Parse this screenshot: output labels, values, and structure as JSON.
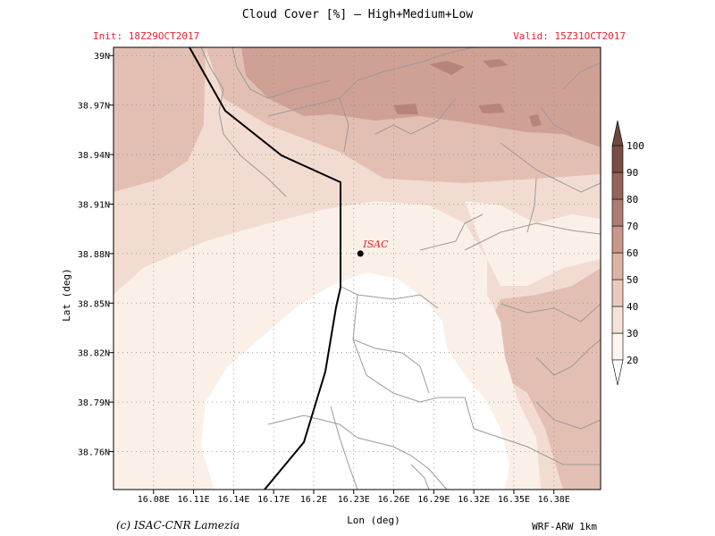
{
  "title": "Cloud Cover [%] — High+Medium+Low",
  "init_label": "Init: 18Z29OCT2017",
  "valid_label": "Valid: 15Z31OCT2017",
  "credit": "(c) ISAC-CNR Lamezia",
  "model": "WRF-ARW 1km",
  "station": {
    "name": "ISAC",
    "lon": 16.235,
    "lat": 38.88
  },
  "chart_data": {
    "type": "heatmap",
    "xlabel": "Lon (deg)",
    "ylabel": "Lat (deg)",
    "xlim": [
      16.05,
      16.415
    ],
    "ylim": [
      38.737,
      39.005
    ],
    "x_ticks": [
      {
        "label": "16.08E",
        "value": 16.08
      },
      {
        "label": "16.11E",
        "value": 16.11
      },
      {
        "label": "16.14E",
        "value": 16.14
      },
      {
        "label": "16.17E",
        "value": 16.17
      },
      {
        "label": "16.2E",
        "value": 16.2
      },
      {
        "label": "16.23E",
        "value": 16.23
      },
      {
        "label": "16.26E",
        "value": 16.26
      },
      {
        "label": "16.29E",
        "value": 16.29
      },
      {
        "label": "16.32E",
        "value": 16.32
      },
      {
        "label": "16.35E",
        "value": 16.35
      },
      {
        "label": "16.38E",
        "value": 16.38
      }
    ],
    "y_ticks": [
      {
        "label": "39N",
        "value": 39.0
      },
      {
        "label": "38.97N",
        "value": 38.97
      },
      {
        "label": "38.94N",
        "value": 38.94
      },
      {
        "label": "38.91N",
        "value": 38.91
      },
      {
        "label": "38.88N",
        "value": 38.88
      },
      {
        "label": "38.85N",
        "value": 38.85
      },
      {
        "label": "38.82N",
        "value": 38.82
      },
      {
        "label": "38.79N",
        "value": 38.79
      },
      {
        "label": "38.76N",
        "value": 38.76
      }
    ],
    "colorbar": {
      "levels": [
        "20",
        "30",
        "40",
        "50",
        "60",
        "70",
        "80",
        "90",
        "100"
      ],
      "colors": [
        "#fdf6f0",
        "#f6e2d8",
        "#ecc9bd",
        "#ddb3a6",
        "#c8978a",
        "#ae7d72",
        "#94645a",
        "#7b4c44"
      ]
    }
  },
  "colors": {
    "white": "#ffffff",
    "band30": "#fbf0e7",
    "band40": "#f2dcd2",
    "band50": "#e3bfb3",
    "band60": "#cfa195",
    "band70": "#b78479",
    "coast": "#000000",
    "rivers": "#9a9a9a"
  }
}
